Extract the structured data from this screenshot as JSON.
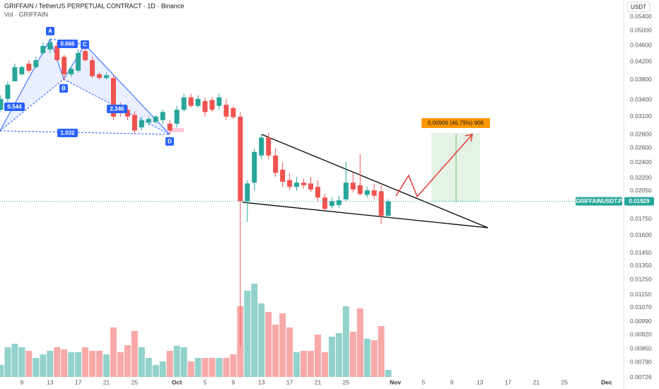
{
  "chart_data": {
    "type": "candlestick",
    "title": "GRIFFAIN / TetherUS PERPETUAL CONTRACT · 1D · Binance",
    "subtitle": "Vol · GRIFFAIN",
    "y_axis_label": "USDT",
    "log_scale": true,
    "up_color": "#26a69a",
    "down_color": "#ef5350",
    "x": [
      6,
      7,
      8,
      9,
      10,
      11,
      12,
      13,
      14,
      15,
      16,
      17,
      18,
      19,
      20,
      21,
      22,
      23,
      24,
      25,
      26,
      27,
      28,
      29,
      30,
      31,
      32,
      33,
      34,
      35,
      36,
      37,
      38,
      39,
      40,
      41,
      42,
      43,
      44,
      45,
      46,
      47,
      48,
      49,
      50,
      51,
      52,
      53,
      54,
      55,
      56,
      57,
      58,
      59,
      60,
      61
    ],
    "open": [
      0.0321,
      0.0341,
      0.0376,
      0.0391,
      0.0415,
      0.0407,
      0.044,
      0.0449,
      0.0458,
      0.0431,
      0.0391,
      0.0399,
      0.0445,
      0.0423,
      0.0391,
      0.0383,
      0.0383,
      0.0328,
      0.0321,
      0.0312,
      0.0291,
      0.0299,
      0.03,
      0.0303,
      0.0297,
      0.0297,
      0.0321,
      0.0344,
      0.0328,
      0.0337,
      0.0339,
      0.0328,
      0.033,
      0.0324,
      0.0309,
      0.0193,
      0.0214,
      0.0249,
      0.0275,
      0.0249,
      0.023,
      0.0217,
      0.0209,
      0.0214,
      0.0213,
      0.0209,
      0.0197,
      0.0188,
      0.0189,
      0.0195,
      0.0214,
      0.0211,
      0.02,
      0.0205,
      0.0204,
      0.0178
    ],
    "high": [
      0.0348,
      0.0376,
      0.0415,
      0.041,
      0.0423,
      0.0431,
      0.0467,
      0.0476,
      0.0467,
      0.0436,
      0.0407,
      0.0449,
      0.0462,
      0.0431,
      0.0395,
      0.0395,
      0.0391,
      0.0334,
      0.0328,
      0.0318,
      0.0309,
      0.0309,
      0.0312,
      0.0321,
      0.0303,
      0.0328,
      0.0351,
      0.0351,
      0.0348,
      0.0344,
      0.0345,
      0.0351,
      0.0341,
      0.0328,
      0.0317,
      0.0217,
      0.0259,
      0.028,
      0.0282,
      0.0259,
      0.024,
      0.0226,
      0.0221,
      0.0219,
      0.0221,
      0.0217,
      0.0201,
      0.0197,
      0.0199,
      0.024,
      0.0226,
      0.0251,
      0.0209,
      0.0213,
      0.0211,
      0.0195
    ],
    "low": [
      0.0318,
      0.0334,
      0.0376,
      0.0388,
      0.0395,
      0.0404,
      0.0436,
      0.044,
      0.042,
      0.0378,
      0.0386,
      0.0395,
      0.042,
      0.0383,
      0.038,
      0.038,
      0.0303,
      0.0309,
      0.0303,
      0.028,
      0.0286,
      0.0294,
      0.0297,
      0.0297,
      0.028,
      0.0291,
      0.0318,
      0.0325,
      0.0325,
      0.0309,
      0.0317,
      0.0321,
      0.0303,
      0.0305,
      0.0086,
      0.0172,
      0.0205,
      0.0244,
      0.0244,
      0.0221,
      0.0209,
      0.0205,
      0.0205,
      0.0207,
      0.0203,
      0.0193,
      0.0182,
      0.0185,
      0.0186,
      0.0193,
      0.0203,
      0.0199,
      0.0197,
      0.0195,
      0.017,
      0.0176
    ],
    "close": [
      0.0341,
      0.0369,
      0.0407,
      0.0407,
      0.0399,
      0.0423,
      0.0458,
      0.0467,
      0.0423,
      0.0391,
      0.0403,
      0.044,
      0.0423,
      0.0387,
      0.0383,
      0.0389,
      0.0309,
      0.0317,
      0.0309,
      0.0286,
      0.0303,
      0.0305,
      0.0309,
      0.0317,
      0.0286,
      0.0321,
      0.0344,
      0.0328,
      0.0341,
      0.0317,
      0.0321,
      0.0344,
      0.0309,
      0.0308,
      0.0193,
      0.0213,
      0.0254,
      0.0275,
      0.0249,
      0.0226,
      0.0215,
      0.0209,
      0.0214,
      0.0211,
      0.0206,
      0.0197,
      0.0185,
      0.0193,
      0.0194,
      0.0214,
      0.0206,
      0.0201,
      0.0205,
      0.0199,
      0.0178,
      0.01929
    ],
    "volume": [
      17,
      42,
      47,
      42,
      37,
      27,
      32,
      37,
      42,
      39,
      35,
      35,
      42,
      37,
      37,
      32,
      70,
      35,
      45,
      65,
      42,
      27,
      17,
      22,
      37,
      44,
      42,
      22,
      27,
      27,
      27,
      27,
      27,
      32,
      100,
      122,
      132,
      104,
      92,
      74,
      90,
      70,
      35,
      37,
      37,
      60,
      35,
      57,
      62,
      100,
      64,
      97,
      54,
      52,
      72,
      10
    ],
    "volume_ylim": [
      0,
      140
    ],
    "ylim": [
      0.00726,
      0.054
    ],
    "yticks": [
      {
        "value": 0.054,
        "label": "0.05400"
      },
      {
        "value": 0.05,
        "label": "0.05000"
      },
      {
        "value": 0.046,
        "label": "0.04600"
      },
      {
        "value": 0.042,
        "label": "0.04200"
      },
      {
        "value": 0.038,
        "label": "0.03800"
      },
      {
        "value": 0.034,
        "label": "0.03400"
      },
      {
        "value": 0.031,
        "label": "0.03100"
      },
      {
        "value": 0.028,
        "label": "0.02800"
      },
      {
        "value": 0.026,
        "label": "0.02600"
      },
      {
        "value": 0.024,
        "label": "0.02400"
      },
      {
        "value": 0.022,
        "label": "0.02200"
      },
      {
        "value": 0.0205,
        "label": "0.02050"
      },
      {
        "value": 0.0175,
        "label": "0.01750"
      },
      {
        "value": 0.016,
        "label": "0.01600"
      },
      {
        "value": 0.0145,
        "label": "0.01450"
      },
      {
        "value": 0.0135,
        "label": "0.01350"
      },
      {
        "value": 0.0125,
        "label": "0.01250"
      },
      {
        "value": 0.0115,
        "label": "0.01150"
      },
      {
        "value": 0.0107,
        "label": "0.01070"
      },
      {
        "value": 0.0099,
        "label": "0.00990"
      },
      {
        "value": 0.0092,
        "label": "0.00920"
      },
      {
        "value": 0.0085,
        "label": "0.00850"
      },
      {
        "value": 0.0079,
        "label": "0.00790"
      },
      {
        "value": 0.00726,
        "label": "0.00726"
      }
    ],
    "xlim": [
      5.9,
      94.2
    ],
    "xticks": [
      9,
      13,
      17,
      21,
      25,
      {
        "value": 31,
        "label": "Oct"
      },
      {
        "value": 35,
        "label": "5"
      },
      {
        "value": 39,
        "label": "9"
      },
      {
        "value": 43,
        "label": "13"
      },
      {
        "value": 47,
        "label": "17"
      },
      {
        "value": 51,
        "label": "21"
      },
      {
        "value": 55,
        "label": "25"
      },
      {
        "value": 62,
        "label": "Nov"
      },
      {
        "value": 66,
        "label": "5"
      },
      {
        "value": 70,
        "label": "9"
      },
      {
        "value": 74,
        "label": "13"
      },
      {
        "value": 78,
        "label": "17"
      },
      {
        "value": 82,
        "label": "21"
      },
      {
        "value": 86,
        "label": "25"
      },
      {
        "value": 92,
        "label": "Dec"
      }
    ],
    "last_price": 0.01929,
    "symbol_label": "GRIFFAINUSDT.P",
    "pattern_points": [
      "A",
      "B",
      "C",
      "D"
    ],
    "pattern_ratios": [
      "0.666",
      "0.544",
      "2.346",
      "1.032"
    ],
    "position_label": "0.00906 (46.79%) 906"
  }
}
